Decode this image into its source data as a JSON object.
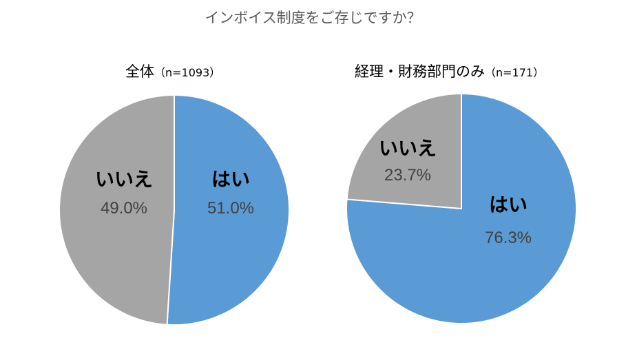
{
  "title": "インボイス制度をご存じですか？",
  "chart_data": [
    {
      "type": "pie",
      "title": "全体",
      "subtitle": "（n=1093）",
      "slices": [
        {
          "label": "はい",
          "value": 51.0,
          "display": "51.0%",
          "color": "#5b9bd5"
        },
        {
          "label": "いいえ",
          "value": 49.0,
          "display": "49.0%",
          "color": "#a5a5a5"
        }
      ]
    },
    {
      "type": "pie",
      "title": "経理・財務部門のみ",
      "subtitle": "（n=171）",
      "slices": [
        {
          "label": "はい",
          "value": 76.3,
          "display": "76.3%",
          "color": "#5b9bd5"
        },
        {
          "label": "いいえ",
          "value": 23.7,
          "display": "23.7%",
          "color": "#a5a5a5"
        }
      ]
    }
  ]
}
